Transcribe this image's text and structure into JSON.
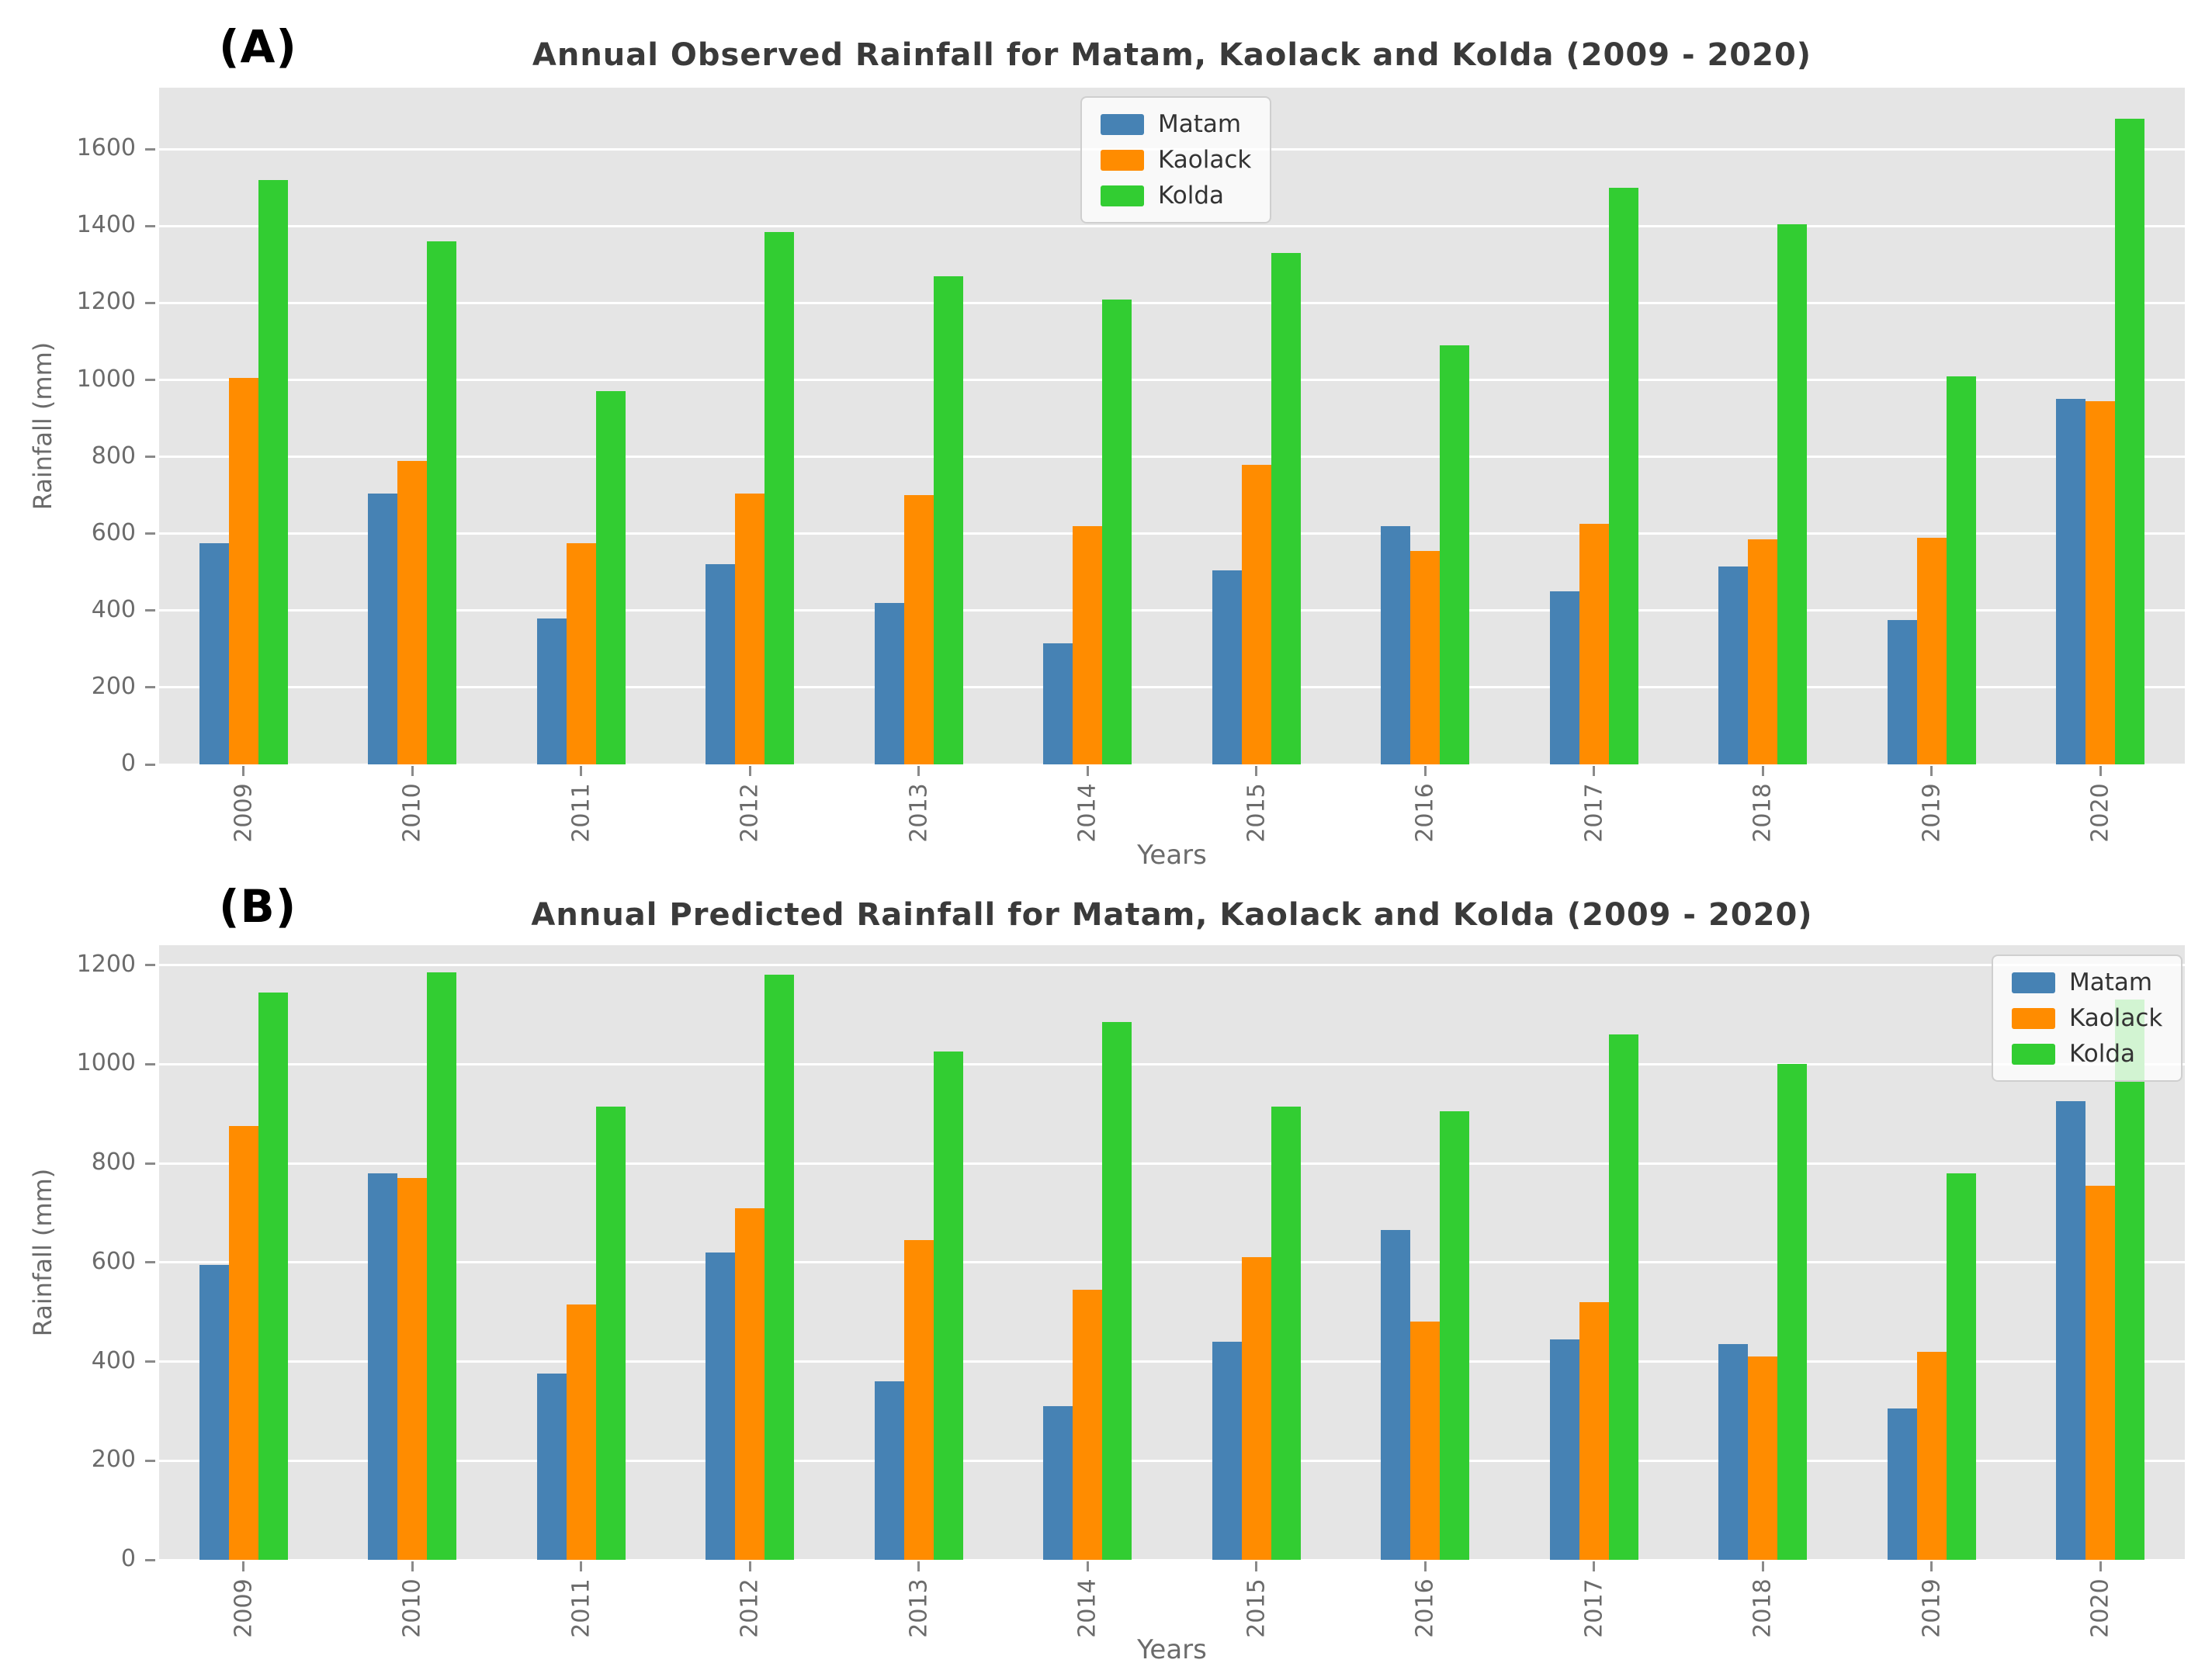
{
  "figure": {
    "background": "#ffffff"
  },
  "panels": [
    {
      "panel_label": "(A)"
    },
    {
      "panel_label": "(B)"
    }
  ],
  "chart_data": [
    {
      "type": "bar",
      "title": "Annual Observed Rainfall for Matam, Kaolack and Kolda (2009 - 2020)",
      "xlabel": "Years",
      "ylabel": "Rainfall (mm)",
      "categories": [
        "2009",
        "2010",
        "2011",
        "2012",
        "2013",
        "2014",
        "2015",
        "2016",
        "2017",
        "2018",
        "2019",
        "2020"
      ],
      "series": [
        {
          "name": "Matam",
          "color": "#4682B4",
          "values": [
            575,
            705,
            380,
            520,
            420,
            315,
            505,
            620,
            450,
            515,
            375,
            950
          ]
        },
        {
          "name": "Kaolack",
          "color": "#FF8C00",
          "values": [
            1005,
            790,
            575,
            705,
            700,
            620,
            780,
            555,
            625,
            585,
            590,
            945
          ]
        },
        {
          "name": "Kolda",
          "color": "#32CD32",
          "values": [
            1520,
            1360,
            970,
            1385,
            1270,
            1210,
            1330,
            1090,
            1500,
            1405,
            1010,
            1680
          ]
        }
      ],
      "yticks": [
        0,
        200,
        400,
        600,
        800,
        1000,
        1200,
        1400,
        1600
      ],
      "ylim": [
        0,
        1760
      ],
      "grid": true,
      "legend_position": "upper center",
      "plot_bg": "#e5e5e5",
      "grid_color": "#ffffff",
      "tick_color": "#6b6b6b",
      "title_color": "#3a3a3a"
    },
    {
      "type": "bar",
      "title": "Annual Predicted Rainfall for Matam, Kaolack and Kolda (2009 - 2020)",
      "xlabel": "Years",
      "ylabel": "Rainfall (mm)",
      "categories": [
        "2009",
        "2010",
        "2011",
        "2012",
        "2013",
        "2014",
        "2015",
        "2016",
        "2017",
        "2018",
        "2019",
        "2020"
      ],
      "series": [
        {
          "name": "Matam",
          "color": "#4682B4",
          "values": [
            595,
            780,
            375,
            620,
            360,
            310,
            440,
            665,
            445,
            435,
            305,
            925
          ]
        },
        {
          "name": "Kaolack",
          "color": "#FF8C00",
          "values": [
            875,
            770,
            515,
            710,
            645,
            545,
            610,
            480,
            520,
            410,
            420,
            755
          ]
        },
        {
          "name": "Kolda",
          "color": "#32CD32",
          "values": [
            1145,
            1185,
            915,
            1180,
            1025,
            1085,
            915,
            905,
            1060,
            1000,
            780,
            1130
          ]
        }
      ],
      "yticks": [
        0,
        200,
        400,
        600,
        800,
        1000,
        1200
      ],
      "ylim": [
        0,
        1240
      ],
      "grid": true,
      "legend_position": "upper right",
      "plot_bg": "#e5e5e5",
      "grid_color": "#ffffff",
      "tick_color": "#6b6b6b",
      "title_color": "#3a3a3a"
    }
  ]
}
